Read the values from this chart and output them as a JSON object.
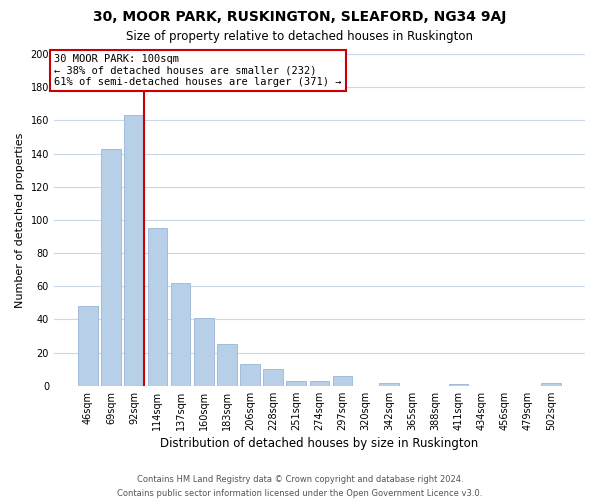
{
  "title": "30, MOOR PARK, RUSKINGTON, SLEAFORD, NG34 9AJ",
  "subtitle": "Size of property relative to detached houses in Ruskington",
  "xlabel": "Distribution of detached houses by size in Ruskington",
  "ylabel": "Number of detached properties",
  "bar_labels": [
    "46sqm",
    "69sqm",
    "92sqm",
    "114sqm",
    "137sqm",
    "160sqm",
    "183sqm",
    "206sqm",
    "228sqm",
    "251sqm",
    "274sqm",
    "297sqm",
    "320sqm",
    "342sqm",
    "365sqm",
    "388sqm",
    "411sqm",
    "434sqm",
    "456sqm",
    "479sqm",
    "502sqm"
  ],
  "bar_values": [
    48,
    143,
    163,
    95,
    62,
    41,
    25,
    13,
    10,
    3,
    3,
    6,
    0,
    2,
    0,
    0,
    1,
    0,
    0,
    0,
    2
  ],
  "bar_color": "#b8cfe8",
  "bar_edge_color": "#9ab5d8",
  "vline_color": "#cc0000",
  "annotation_line1": "30 MOOR PARK: 100sqm",
  "annotation_line2": "← 38% of detached houses are smaller (232)",
  "annotation_line3": "61% of semi-detached houses are larger (371) →",
  "annotation_box_color": "#ffffff",
  "annotation_box_edgecolor": "#cc0000",
  "ylim": [
    0,
    200
  ],
  "yticks": [
    0,
    20,
    40,
    60,
    80,
    100,
    120,
    140,
    160,
    180,
    200
  ],
  "footer_line1": "Contains HM Land Registry data © Crown copyright and database right 2024.",
  "footer_line2": "Contains public sector information licensed under the Open Government Licence v3.0.",
  "background_color": "#ffffff",
  "grid_color": "#c8d8e8",
  "title_fontsize": 10,
  "subtitle_fontsize": 8.5,
  "ylabel_fontsize": 8,
  "xlabel_fontsize": 8.5,
  "tick_fontsize": 7,
  "annotation_fontsize": 7.5,
  "footer_fontsize": 6
}
